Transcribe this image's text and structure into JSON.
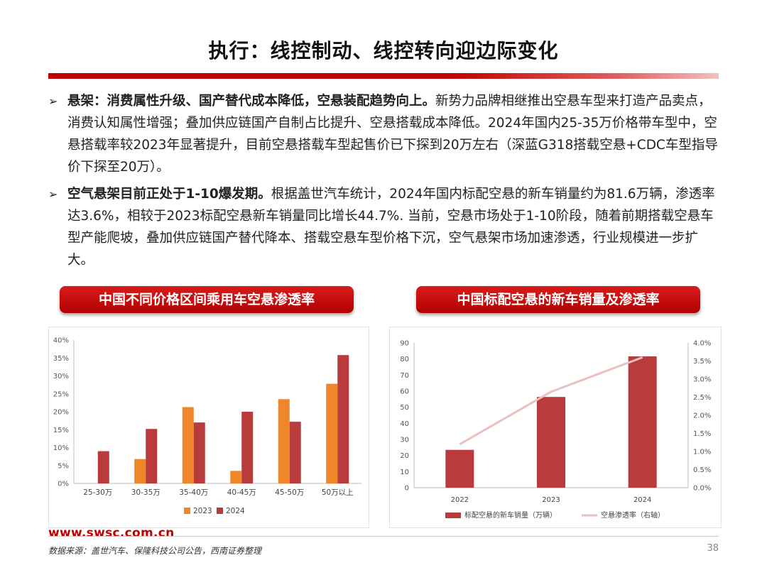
{
  "page": {
    "title": "执行：线控制动、线控转向迎边际变化",
    "bullets": [
      {
        "bold": "悬架：消费属性升级、国产替代成本降低，空悬装配趋势向上。",
        "text": "新势力品牌相继推出空悬车型来打造产品卖点，消费认知属性增强；叠加供应链国产自制占比提升、空悬搭载成本降低。2024年国内25-35万价格带车型中，空悬搭载率较2023年显著提升，目前空悬搭载车型起售价已下探到20万左右（深蓝G318搭载空悬+CDC车型指导价下探至20万）。"
      },
      {
        "bold": "空气悬架目前正处于1-10爆发期。",
        "text": "根据盖世汽车统计，2024年国内标配空悬的新车销量约为81.6万辆，渗透率达3.6%，相较于2023标配空悬新车销量同比增长44.7%. 当前，空悬市场处于1-10阶段，随着前期搭载空悬车型产能爬坡，叠加供应链国产替代降本、搭载空悬车型价格下沉，空气悬架市场加速渗透，行业规模进一步扩大。"
      }
    ],
    "footer": {
      "url": "www.swsc.com.cn",
      "source": "数据来源：盖世汽车、保隆科技公司公告，西南证券整理",
      "page_number": "38"
    }
  },
  "chart_data": [
    {
      "type": "bar",
      "title": "中国不同价格区间乘用车空悬渗透率",
      "categories": [
        "25-30万",
        "30-35万",
        "35-40万",
        "40-45万",
        "45-50万",
        "50万以上"
      ],
      "series": [
        {
          "name": "2023",
          "values": [
            0,
            6.8,
            21.3,
            3.5,
            23.5,
            27.8
          ],
          "color": "#f0862a"
        },
        {
          "name": "2024",
          "values": [
            9.0,
            15.2,
            17.0,
            20.0,
            17.2,
            35.8
          ],
          "color": "#b83c3c"
        }
      ],
      "y_ticks": [
        "0%",
        "5%",
        "10%",
        "15%",
        "20%",
        "25%",
        "30%",
        "35%",
        "40%"
      ],
      "ylim": [
        0,
        40
      ],
      "legend": "bottom"
    },
    {
      "type": "bar",
      "title": "中国标配空悬的新车销量及渗透率",
      "categories": [
        "2022",
        "2023",
        "2024"
      ],
      "series": [
        {
          "name": "标配空悬的新车销量（万辆）",
          "type": "bar",
          "values": [
            23.5,
            56.4,
            81.6
          ],
          "color": "#b83c3c"
        },
        {
          "name": "空悬渗透率（右轴）",
          "type": "line",
          "values": [
            1.2,
            2.65,
            3.6
          ],
          "color": "#e8c0c0"
        }
      ],
      "y_ticks_left": [
        "0",
        "10",
        "20",
        "30",
        "40",
        "50",
        "60",
        "70",
        "80",
        "90"
      ],
      "y_ticks_right": [
        "0.0%",
        "0.5%",
        "1.0%",
        "1.5%",
        "2.0%",
        "2.5%",
        "3.0%",
        "3.5%",
        "4.0%"
      ],
      "ylim_left": [
        0,
        90
      ],
      "ylim_right": [
        0,
        4
      ],
      "legend": "bottom"
    }
  ]
}
